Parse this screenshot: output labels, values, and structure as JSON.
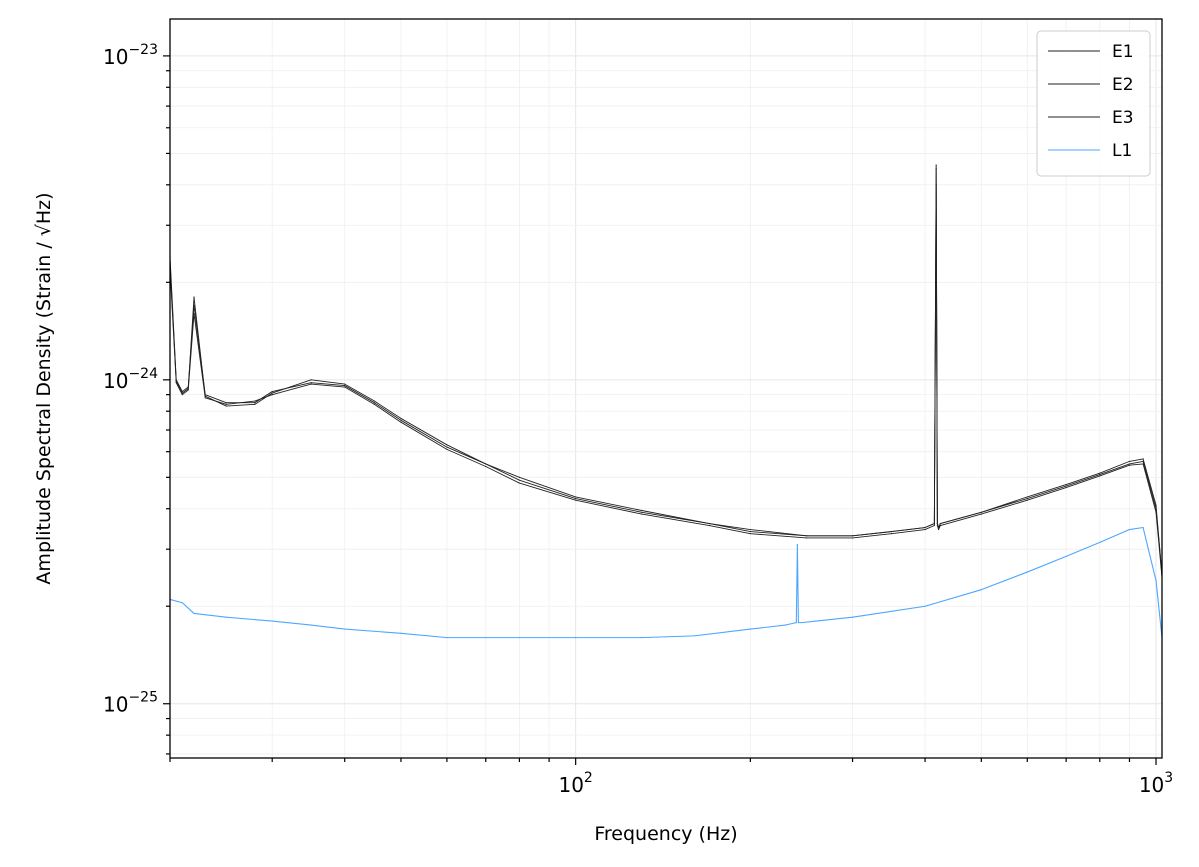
{
  "chart_data": {
    "type": "line",
    "xlabel": "Frequency (Hz)",
    "ylabel": "Amplitude Spectral Density (Strain / √Hz)",
    "xscale": "log",
    "yscale": "log",
    "xlim": [
      20,
      1024
    ],
    "ylim": [
      6.8e-26,
      1.3e-23
    ],
    "grid": true,
    "legend_position": "top-right",
    "x_ticks": [
      {
        "value": 100,
        "base": "10",
        "exp": "2"
      },
      {
        "value": 1000,
        "base": "10",
        "exp": "3"
      }
    ],
    "y_ticks": [
      {
        "value": 1e-25,
        "base": "10",
        "exp": "−25"
      },
      {
        "value": 1e-24,
        "base": "10",
        "exp": "−24"
      },
      {
        "value": 1e-23,
        "base": "10",
        "exp": "−23"
      }
    ],
    "series": [
      {
        "name": "E1",
        "color": "#222222",
        "x": [
          20,
          20.5,
          21,
          21.5,
          22,
          23,
          25,
          28,
          30,
          35,
          40,
          45,
          50,
          60,
          70,
          80,
          100,
          130,
          170,
          200,
          250,
          300,
          350,
          400,
          415,
          418,
          420,
          422,
          425,
          500,
          600,
          700,
          800,
          900,
          950,
          1000,
          1024
        ],
        "y": [
          2.4e-24,
          1e-24,
          9.2e-25,
          9.5e-25,
          1.7e-24,
          9e-25,
          8.5e-25,
          8.5e-25,
          9.2e-25,
          9.8e-25,
          9.6e-25,
          8.5e-25,
          7.5e-25,
          6.2e-25,
          5.5e-25,
          4.9e-25,
          4.3e-25,
          3.9e-25,
          3.6e-25,
          3.4e-25,
          3.3e-25,
          3.3e-25,
          3.4e-25,
          3.5e-25,
          3.6e-25,
          4.5e-24,
          3.6e-25,
          3.5e-25,
          3.6e-25,
          3.9e-25,
          4.3e-25,
          4.7e-25,
          5.1e-25,
          5.5e-25,
          5.6e-25,
          4e-25,
          2.5e-25
        ]
      },
      {
        "name": "E2",
        "color": "#222222",
        "x": [
          20,
          20.5,
          21,
          21.5,
          22,
          23,
          25,
          28,
          30,
          35,
          40,
          45,
          50,
          60,
          70,
          80,
          100,
          130,
          170,
          200,
          250,
          300,
          350,
          400,
          415,
          418,
          420,
          422,
          425,
          500,
          600,
          700,
          800,
          900,
          950,
          1000,
          1024
        ],
        "y": [
          2.2e-24,
          9.8e-25,
          9e-25,
          9.3e-25,
          1.6e-24,
          8.8e-25,
          8.4e-25,
          8.6e-25,
          9e-25,
          9.7e-25,
          9.5e-25,
          8.4e-25,
          7.4e-25,
          6.1e-25,
          5.4e-25,
          4.8e-25,
          4.25e-25,
          3.85e-25,
          3.55e-25,
          3.35e-25,
          3.25e-25,
          3.25e-25,
          3.35e-25,
          3.45e-25,
          3.55e-25,
          4e-24,
          3.55e-25,
          3.45e-25,
          3.55e-25,
          3.85e-25,
          4.25e-25,
          4.65e-25,
          5.05e-25,
          5.45e-25,
          5.5e-25,
          3.9e-25,
          2.45e-25
        ]
      },
      {
        "name": "E3",
        "color": "#222222",
        "x": [
          20,
          20.5,
          21,
          21.5,
          22,
          23,
          25,
          28,
          30,
          35,
          40,
          45,
          50,
          60,
          70,
          80,
          100,
          130,
          170,
          200,
          250,
          300,
          350,
          400,
          415,
          418,
          420,
          422,
          425,
          500,
          600,
          700,
          800,
          900,
          950,
          1000,
          1024
        ],
        "y": [
          2.3e-24,
          9.9e-25,
          9.1e-25,
          9.4e-25,
          1.8e-24,
          8.9e-25,
          8.3e-25,
          8.4e-25,
          9.1e-25,
          1e-24,
          9.7e-25,
          8.6e-25,
          7.6e-25,
          6.3e-25,
          5.5e-25,
          5e-25,
          4.35e-25,
          3.95e-25,
          3.6e-25,
          3.45e-25,
          3.3e-25,
          3.3e-25,
          3.4e-25,
          3.5e-25,
          3.6e-25,
          4.6e-24,
          3.6e-25,
          3.5e-25,
          3.6e-25,
          3.9e-25,
          4.35e-25,
          4.75e-25,
          5.15e-25,
          5.6e-25,
          5.7e-25,
          4.1e-25,
          2.5e-25
        ]
      },
      {
        "name": "L1",
        "color": "#4da6ff",
        "x": [
          20,
          21,
          22,
          25,
          30,
          35,
          40,
          50,
          60,
          70,
          80,
          100,
          130,
          160,
          200,
          230,
          240,
          241,
          242,
          245,
          260,
          300,
          400,
          500,
          600,
          700,
          800,
          900,
          950,
          1000,
          1024
        ],
        "y": [
          2.1e-25,
          2.05e-25,
          1.9e-25,
          1.85e-25,
          1.8e-25,
          1.75e-25,
          1.7e-25,
          1.65e-25,
          1.6e-25,
          1.6e-25,
          1.6e-25,
          1.6e-25,
          1.6e-25,
          1.62e-25,
          1.7e-25,
          1.75e-25,
          1.78e-25,
          3.1e-25,
          1.78e-25,
          1.78e-25,
          1.8e-25,
          1.85e-25,
          2e-25,
          2.25e-25,
          2.55e-25,
          2.85e-25,
          3.15e-25,
          3.45e-25,
          3.5e-25,
          2.4e-25,
          1.6e-25
        ]
      }
    ]
  }
}
